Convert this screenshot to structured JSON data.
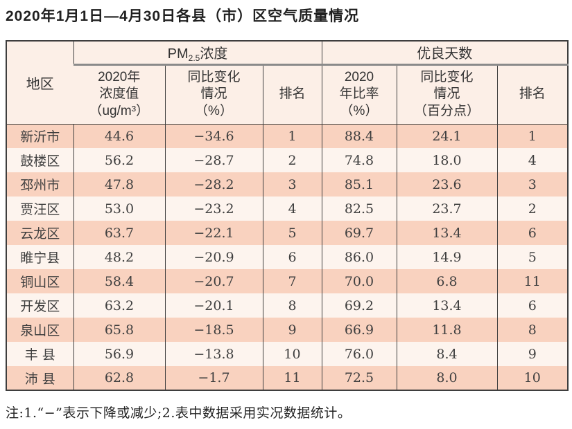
{
  "page": {
    "title": "2020年1月1日—4月30日各县（市）区空气质量情况",
    "footnote": "注:1.“−”表示下降或减少;2.表中数据采用实况数据统计。"
  },
  "colors": {
    "row-odd": "#f9d2bf",
    "row-even": "#fdf4ee",
    "header-bg": "#fcefe7",
    "border-dark": "#3e3e3e",
    "group-rule": "#8a8a8a",
    "text-main": "#3f3f3f",
    "title-color": "#1f1f1f"
  },
  "table": {
    "region_header": "地区",
    "groups": [
      {
        "prefix": "PM",
        "sub": "2.5",
        "suffix": "浓度"
      },
      {
        "label": "优良天数"
      }
    ],
    "columns": [
      "2020年\n浓度值\n（ug/m³）",
      "同比变化\n情况\n（%）",
      "排名",
      "2020\n年比率\n（%）",
      "同比变化\n情况\n（百分点）",
      "排名"
    ],
    "rows": [
      [
        "新沂市",
        "44.6",
        "−34.6",
        "1",
        "88.4",
        "24.1",
        "1"
      ],
      [
        "鼓楼区",
        "56.2",
        "−28.7",
        "2",
        "74.8",
        "18.0",
        "4"
      ],
      [
        "邳州市",
        "47.8",
        "−28.2",
        "3",
        "85.1",
        "23.6",
        "3"
      ],
      [
        "贾汪区",
        "53.0",
        "−23.2",
        "4",
        "82.5",
        "23.7",
        "2"
      ],
      [
        "云龙区",
        "63.7",
        "−22.1",
        "5",
        "69.7",
        "13.4",
        "6"
      ],
      [
        "睢宁县",
        "48.2",
        "−20.9",
        "6",
        "86.0",
        "14.9",
        "5"
      ],
      [
        "铜山区",
        "58.4",
        "−20.7",
        "7",
        "70.0",
        "6.8",
        "11"
      ],
      [
        "开发区",
        "63.2",
        "−20.1",
        "8",
        "69.2",
        "13.4",
        "6"
      ],
      [
        "泉山区",
        "65.8",
        "−18.5",
        "9",
        "66.9",
        "11.8",
        "8"
      ],
      [
        "丰 县",
        "56.9",
        "−13.8",
        "10",
        "76.0",
        "8.4",
        "9"
      ],
      [
        "沛 县",
        "62.8",
        "−1.7",
        "11",
        "72.5",
        "8.0",
        "10"
      ]
    ]
  }
}
